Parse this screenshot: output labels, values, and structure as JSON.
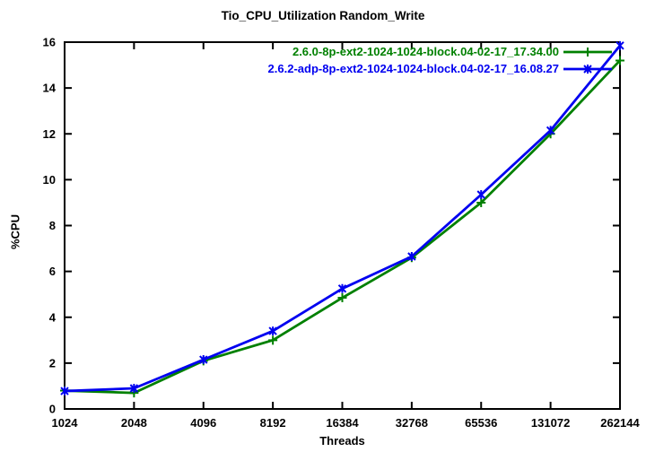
{
  "chart_data": {
    "type": "line",
    "title": "Tio_CPU_Utilization Random_Write",
    "xlabel": "Threads",
    "ylabel": "%CPU",
    "x_scale": "log2",
    "grid": false,
    "legend_position": "top-right-inside",
    "categories": [
      "1024",
      "2048",
      "4096",
      "8192",
      "16384",
      "32768",
      "65536",
      "131072",
      "262144"
    ],
    "yticks": [
      "0",
      "2",
      "4",
      "6",
      "8",
      "10",
      "12",
      "14",
      "16"
    ],
    "ylim": [
      0,
      16
    ],
    "axis_color": "#000000",
    "background_color": "#ffffff",
    "series": [
      {
        "name": "2.6.0-8p-ext2-1024-1024-block.04-02-17_17.34.00",
        "color": "#008000",
        "marker": "plus",
        "values": [
          0.8,
          0.7,
          2.1,
          3.0,
          4.85,
          6.6,
          9.0,
          12.0,
          15.2
        ]
      },
      {
        "name": "2.6.2-adp-8p-ext2-1024-1024-block.04-02-17_16.08.27",
        "color": "#0000f0",
        "marker": "asterisk",
        "values": [
          0.78,
          0.9,
          2.15,
          3.4,
          5.25,
          6.65,
          9.35,
          12.15,
          15.85
        ]
      }
    ]
  }
}
